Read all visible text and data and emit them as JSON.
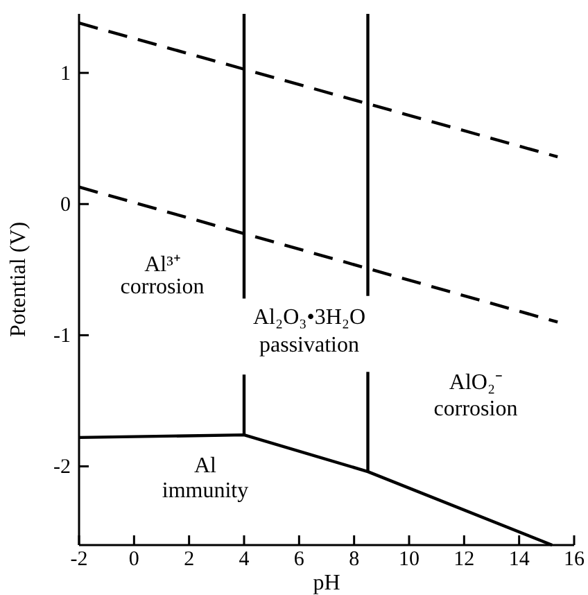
{
  "chart_data": {
    "type": "line",
    "xlabel": "pH",
    "ylabel": "Potential (V)",
    "xlim": [
      -2,
      16
    ],
    "ylim": [
      -2.6,
      1.45
    ],
    "xticks": [
      -2,
      0,
      2,
      4,
      6,
      8,
      10,
      12,
      14,
      16
    ],
    "yticks": [
      -2,
      -1,
      0,
      1
    ],
    "grid": false,
    "marker": "none",
    "series": [
      {
        "color": "#000000",
        "line_style": "dashed",
        "x": [
          -2,
          15.4
        ],
        "values": [
          1.38,
          0.36
        ]
      },
      {
        "color": "#000000",
        "line_style": "dashed",
        "x": [
          -2,
          15.4
        ],
        "values": [
          0.13,
          -0.9
        ]
      },
      {
        "color": "#000000",
        "line_style": "solid",
        "x": [
          4,
          4
        ],
        "values": [
          1.45,
          -0.72
        ]
      },
      {
        "color": "#000000",
        "line_style": "solid",
        "x": [
          4,
          4
        ],
        "values": [
          -1.3,
          -1.76
        ]
      },
      {
        "color": "#000000",
        "line_style": "solid",
        "x": [
          8.5,
          8.5
        ],
        "values": [
          1.45,
          -0.7
        ]
      },
      {
        "color": "#000000",
        "line_style": "solid",
        "x": [
          8.5,
          8.5
        ],
        "values": [
          -1.28,
          -2.04
        ]
      },
      {
        "color": "#000000",
        "line_style": "solid",
        "x": [
          -2,
          4,
          8.5,
          15.2
        ],
        "values": [
          -1.78,
          -1.76,
          -2.04,
          -2.6
        ]
      }
    ],
    "annotations": [
      "Al³⁺",
      "corrosion",
      "Al₂O₃•3H₂O",
      "passivation",
      "AlO₂⁻",
      "corrosion",
      "Al",
      "immunity"
    ]
  }
}
